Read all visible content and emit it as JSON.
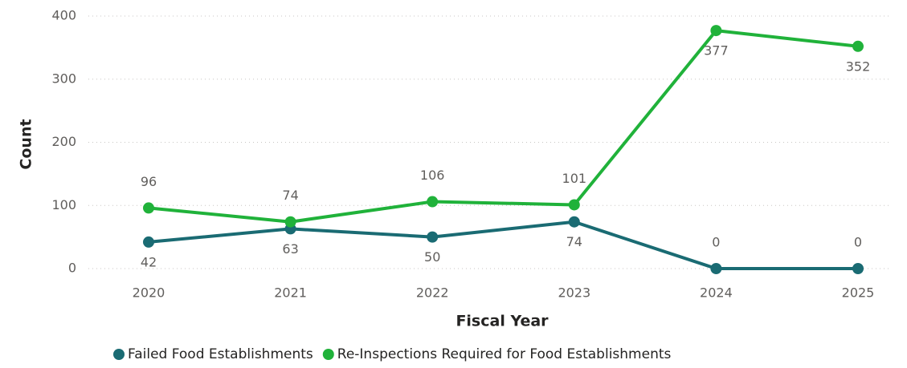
{
  "chart_data": {
    "type": "line",
    "x_label": "Fiscal Year",
    "y_label": "Count",
    "categories": [
      "2020",
      "2021",
      "2022",
      "2023",
      "2024",
      "2025"
    ],
    "series": [
      {
        "name": "Failed Food Establishments",
        "color": "#1a6b73",
        "values": [
          42,
          63,
          50,
          74,
          0,
          0
        ]
      },
      {
        "name": "Re-Inspections Required for Food Establishments",
        "color": "#20b23a",
        "values": [
          96,
          74,
          106,
          101,
          377,
          352
        ]
      }
    ],
    "ylim": [
      0,
      400
    ],
    "yticks": [
      0,
      100,
      200,
      300,
      400
    ],
    "grid": true,
    "legend": "bottom"
  }
}
